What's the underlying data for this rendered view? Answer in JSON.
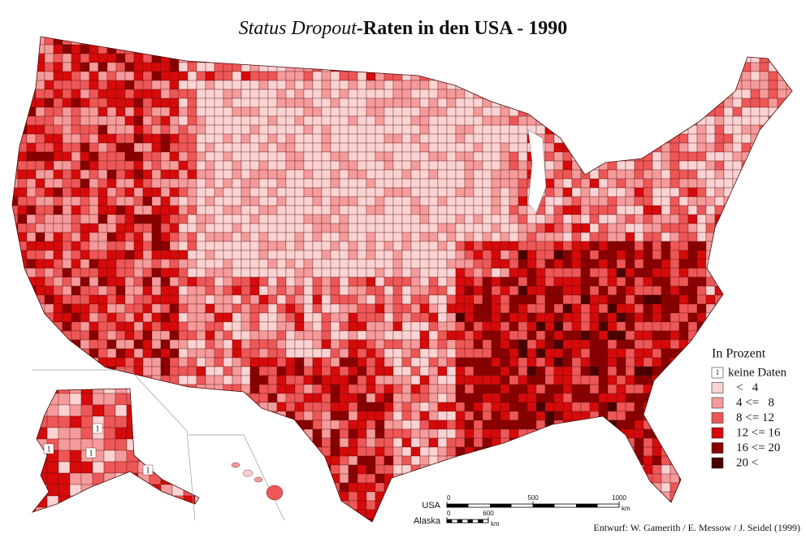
{
  "title": {
    "italic": "Status Dropout",
    "rest": "-Raten in den USA - 1990"
  },
  "legend": {
    "title": "In Prozent",
    "no_data_marker": "1",
    "items": [
      {
        "label": "keine Daten",
        "color": "#ffffff"
      },
      {
        "label": "<   4",
        "color": "#fbd3d3"
      },
      {
        "label": "4 <=   8",
        "color": "#f59b9b"
      },
      {
        "label": "8 <= 12",
        "color": "#ee5757"
      },
      {
        "label": "12 <= 16",
        "color": "#d60a0a"
      },
      {
        "label": "16 <= 20",
        "color": "#8a0000"
      },
      {
        "label": "20 <",
        "color": "#4a0000"
      }
    ]
  },
  "alaska_marks": [
    "1",
    "1",
    "1",
    "1"
  ],
  "scale": {
    "usa": {
      "label": "USA",
      "ticks": [
        0,
        500,
        1000
      ],
      "unit": "km"
    },
    "alaska": {
      "label": "Alaska",
      "ticks": [
        0,
        600
      ],
      "unit": "km"
    }
  },
  "credit": "Entwurf: W. Gamerith / E. Messow / J. Seidel (1999)"
}
